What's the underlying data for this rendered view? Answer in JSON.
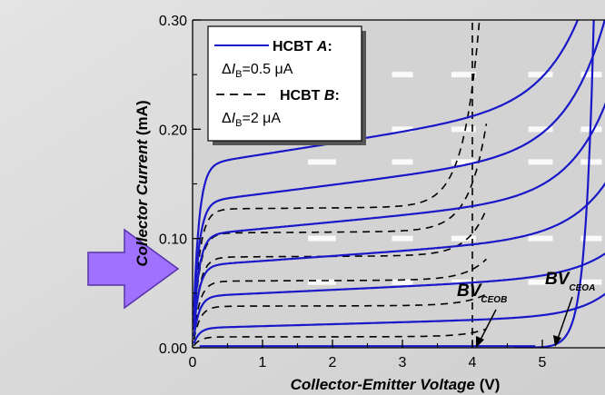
{
  "chart_data": {
    "type": "line",
    "xlabel_main": "Collector-Emitter Voltage",
    "xlabel_unit": " (V)",
    "ylabel_pre": "Collector ",
    "ylabel_italic": "Current",
    "ylabel_unit": " (mA)",
    "xlim": [
      0,
      6.0
    ],
    "ylim": [
      0,
      0.3
    ],
    "x_ticks": [
      0,
      1,
      2,
      3,
      4,
      5
    ],
    "y_ticks": [
      0.0,
      0.1,
      0.2,
      0.3
    ],
    "y_tick_labels": [
      "0.00",
      "0.10",
      "0.20",
      "0.30"
    ],
    "legend": {
      "placement": "top-left",
      "a_title": "HCBT ",
      "a_letter": "A",
      "a_colon": ":",
      "a_step_delta": "Δ",
      "a_step_I": "I",
      "a_step_sub": "B",
      "a_step_value": "=0.5 μA",
      "b_title": "HCBT ",
      "b_letter": "B",
      "b_colon": ":",
      "b_step_delta": "Δ",
      "b_step_I": "I",
      "b_step_sub": "B",
      "b_step_value": "=2 μA"
    },
    "annotations": [
      {
        "id": "bv-ceob",
        "main": "BV",
        "sub": "CEOB",
        "points_to_x": 4.0
      },
      {
        "id": "bv-ceoa",
        "main": "BV",
        "sub": "CEOA",
        "points_to_x": 5.12
      }
    ],
    "series_a": {
      "color": "#1818c8",
      "breakdown_x": 5.1,
      "plateau_currents": [
        0.018,
        0.047,
        0.075,
        0.103,
        0.133,
        0.167
      ],
      "slopes": [
        0.0018,
        0.003,
        0.0045,
        0.006,
        0.008,
        0.01
      ],
      "knee_x": [
        5.1,
        4.9,
        4.45,
        4.15,
        3.95,
        3.8
      ],
      "knee_v": [
        0.45,
        0.55,
        0.55,
        0.55,
        0.55,
        0.55
      ]
    },
    "series_b": {
      "color": "#000000",
      "breakdown_x": 4.0,
      "plateau_currents": [
        0.01,
        0.038,
        0.061,
        0.083,
        0.105,
        0.127
      ],
      "knee_x": [
        3.85,
        3.7,
        3.55,
        3.4,
        3.25,
        3.1
      ],
      "knee_v": [
        0.3,
        0.32,
        0.3,
        0.27,
        0.25,
        0.23
      ]
    },
    "colors": {
      "background": "#d9d9d9",
      "plot_background": "#d3d3d3",
      "arrow": "#a070ff",
      "grid_dash": "#ffffff"
    }
  }
}
